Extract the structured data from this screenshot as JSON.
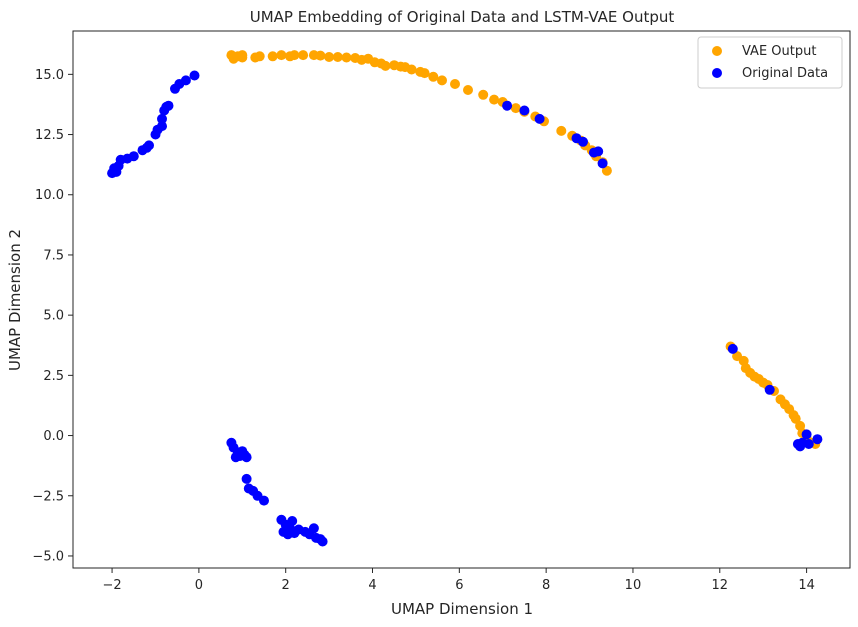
{
  "chart_data": {
    "type": "scatter",
    "title": "UMAP Embedding of Original Data and LSTM-VAE Output",
    "xlabel": "UMAP Dimension 1",
    "ylabel": "UMAP Dimension 2",
    "xlim": [
      -2.9,
      15.0
    ],
    "ylim": [
      -5.5,
      16.8
    ],
    "xticks": [
      -2,
      0,
      2,
      4,
      6,
      8,
      10,
      12,
      14
    ],
    "xtick_labels": [
      "−2",
      "0",
      "2",
      "4",
      "6",
      "8",
      "10",
      "12",
      "14"
    ],
    "yticks": [
      -5.0,
      -2.5,
      0.0,
      2.5,
      5.0,
      7.5,
      10.0,
      12.5,
      15.0
    ],
    "ytick_labels": [
      "−5.0",
      "−2.5",
      "0.0",
      "2.5",
      "5.0",
      "7.5",
      "10.0",
      "12.5",
      "15.0"
    ],
    "grid": false,
    "legend_position": "top-right",
    "series": [
      {
        "name": "VAE Output",
        "color": "#ffa500",
        "points": [
          [
            0.75,
            15.8
          ],
          [
            0.8,
            15.65
          ],
          [
            0.9,
            15.75
          ],
          [
            1.0,
            15.7
          ],
          [
            1.0,
            15.8
          ],
          [
            1.3,
            15.7
          ],
          [
            1.4,
            15.75
          ],
          [
            1.7,
            15.75
          ],
          [
            1.9,
            15.8
          ],
          [
            2.1,
            15.75
          ],
          [
            2.2,
            15.8
          ],
          [
            2.4,
            15.8
          ],
          [
            2.65,
            15.8
          ],
          [
            2.8,
            15.78
          ],
          [
            3.0,
            15.72
          ],
          [
            3.2,
            15.72
          ],
          [
            3.4,
            15.7
          ],
          [
            3.6,
            15.68
          ],
          [
            3.75,
            15.6
          ],
          [
            3.9,
            15.65
          ],
          [
            4.05,
            15.5
          ],
          [
            4.2,
            15.45
          ],
          [
            4.3,
            15.35
          ],
          [
            4.5,
            15.38
          ],
          [
            4.65,
            15.32
          ],
          [
            4.75,
            15.3
          ],
          [
            4.9,
            15.2
          ],
          [
            5.1,
            15.1
          ],
          [
            5.2,
            15.05
          ],
          [
            5.4,
            14.9
          ],
          [
            5.6,
            14.75
          ],
          [
            5.9,
            14.6
          ],
          [
            6.2,
            14.35
          ],
          [
            6.55,
            14.15
          ],
          [
            6.8,
            13.95
          ],
          [
            7.0,
            13.85
          ],
          [
            7.3,
            13.6
          ],
          [
            7.5,
            13.45
          ],
          [
            7.75,
            13.25
          ],
          [
            7.95,
            13.05
          ],
          [
            8.35,
            12.65
          ],
          [
            8.6,
            12.45
          ],
          [
            8.8,
            12.25
          ],
          [
            8.9,
            12.05
          ],
          [
            9.05,
            11.85
          ],
          [
            9.15,
            11.6
          ],
          [
            9.3,
            11.35
          ],
          [
            9.4,
            11.0
          ],
          [
            12.25,
            3.7
          ],
          [
            12.4,
            3.3
          ],
          [
            12.55,
            3.1
          ],
          [
            12.6,
            2.8
          ],
          [
            12.7,
            2.6
          ],
          [
            12.8,
            2.45
          ],
          [
            12.9,
            2.35
          ],
          [
            13.0,
            2.2
          ],
          [
            13.1,
            2.1
          ],
          [
            13.25,
            1.85
          ],
          [
            13.4,
            1.5
          ],
          [
            13.5,
            1.3
          ],
          [
            13.6,
            1.1
          ],
          [
            13.7,
            0.85
          ],
          [
            13.75,
            0.7
          ],
          [
            13.85,
            0.4
          ],
          [
            13.9,
            0.1
          ],
          [
            14.0,
            -0.1
          ],
          [
            14.1,
            -0.3
          ],
          [
            14.2,
            -0.35
          ]
        ]
      },
      {
        "name": "Original Data",
        "color": "#0000ff",
        "points": [
          [
            -2.0,
            10.9
          ],
          [
            -1.95,
            11.0
          ],
          [
            -1.9,
            10.95
          ],
          [
            -1.95,
            11.1
          ],
          [
            -1.85,
            11.2
          ],
          [
            -1.8,
            11.45
          ],
          [
            -1.65,
            11.5
          ],
          [
            -1.5,
            11.6
          ],
          [
            -1.3,
            11.85
          ],
          [
            -1.2,
            11.95
          ],
          [
            -1.15,
            12.05
          ],
          [
            -1.0,
            12.5
          ],
          [
            -0.95,
            12.7
          ],
          [
            -0.85,
            12.85
          ],
          [
            -0.85,
            13.15
          ],
          [
            -0.8,
            13.5
          ],
          [
            -0.75,
            13.65
          ],
          [
            -0.7,
            13.7
          ],
          [
            -0.55,
            14.4
          ],
          [
            -0.45,
            14.6
          ],
          [
            -0.3,
            14.75
          ],
          [
            -0.1,
            14.95
          ],
          [
            0.75,
            -0.3
          ],
          [
            0.8,
            -0.5
          ],
          [
            0.85,
            -0.9
          ],
          [
            0.9,
            -0.7
          ],
          [
            0.95,
            -0.85
          ],
          [
            1.0,
            -0.65
          ],
          [
            1.05,
            -0.8
          ],
          [
            1.1,
            -0.9
          ],
          [
            1.1,
            -1.8
          ],
          [
            1.15,
            -2.2
          ],
          [
            1.25,
            -2.3
          ],
          [
            1.35,
            -2.5
          ],
          [
            1.5,
            -2.7
          ],
          [
            1.9,
            -3.5
          ],
          [
            2.0,
            -3.7
          ],
          [
            2.1,
            -3.85
          ],
          [
            2.15,
            -3.55
          ],
          [
            2.2,
            -4.05
          ],
          [
            2.3,
            -3.9
          ],
          [
            2.45,
            -4.0
          ],
          [
            2.55,
            -4.1
          ],
          [
            2.65,
            -3.85
          ],
          [
            2.7,
            -4.25
          ],
          [
            2.8,
            -4.3
          ],
          [
            2.85,
            -4.4
          ],
          [
            1.95,
            -4.0
          ],
          [
            2.05,
            -4.1
          ],
          [
            7.1,
            13.7
          ],
          [
            7.5,
            13.5
          ],
          [
            7.85,
            13.15
          ],
          [
            8.7,
            12.35
          ],
          [
            8.85,
            12.2
          ],
          [
            9.1,
            11.75
          ],
          [
            9.2,
            11.8
          ],
          [
            9.3,
            11.3
          ],
          [
            12.3,
            3.6
          ],
          [
            13.15,
            1.9
          ],
          [
            13.8,
            -0.35
          ],
          [
            13.85,
            -0.45
          ],
          [
            13.9,
            -0.3
          ],
          [
            14.0,
            0.05
          ],
          [
            14.05,
            -0.35
          ],
          [
            14.25,
            -0.15
          ]
        ]
      }
    ]
  }
}
